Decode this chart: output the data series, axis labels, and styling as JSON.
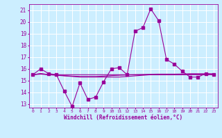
{
  "xlabel": "Windchill (Refroidissement éolien,°C)",
  "x_hours": [
    0,
    1,
    2,
    3,
    4,
    5,
    6,
    7,
    8,
    9,
    10,
    11,
    12,
    13,
    14,
    15,
    16,
    17,
    18,
    19,
    20,
    21,
    22,
    23
  ],
  "line1": [
    15.5,
    16.0,
    15.6,
    15.5,
    14.1,
    12.8,
    14.8,
    13.4,
    13.6,
    14.9,
    16.0,
    16.1,
    15.5,
    19.2,
    19.5,
    21.1,
    20.1,
    16.8,
    16.4,
    15.8,
    15.3,
    15.3,
    15.6,
    15.5
  ],
  "line2": [
    15.5,
    15.55,
    15.5,
    15.5,
    15.5,
    15.5,
    15.5,
    15.5,
    15.5,
    15.5,
    15.5,
    15.5,
    15.5,
    15.5,
    15.5,
    15.5,
    15.5,
    15.5,
    15.5,
    15.5,
    15.5,
    15.5,
    15.5,
    15.5
  ],
  "line3": [
    15.5,
    15.6,
    15.5,
    15.45,
    15.4,
    15.35,
    15.3,
    15.3,
    15.3,
    15.3,
    15.3,
    15.3,
    15.35,
    15.4,
    15.45,
    15.5,
    15.5,
    15.5,
    15.5,
    15.52,
    15.55,
    15.55,
    15.55,
    15.55
  ],
  "line4": [
    15.5,
    15.58,
    15.52,
    15.48,
    15.42,
    15.38,
    15.35,
    15.35,
    15.35,
    15.38,
    15.42,
    15.45,
    15.48,
    15.5,
    15.52,
    15.54,
    15.55,
    15.55,
    15.55,
    15.56,
    15.58,
    15.58,
    15.58,
    15.58
  ],
  "line_color": "#990099",
  "bg_color": "#cceeff",
  "grid_color": "#aadddd",
  "ylim": [
    12.7,
    21.5
  ],
  "yticks": [
    13,
    14,
    15,
    16,
    17,
    18,
    19,
    20,
    21
  ],
  "marker_size": 2.5
}
